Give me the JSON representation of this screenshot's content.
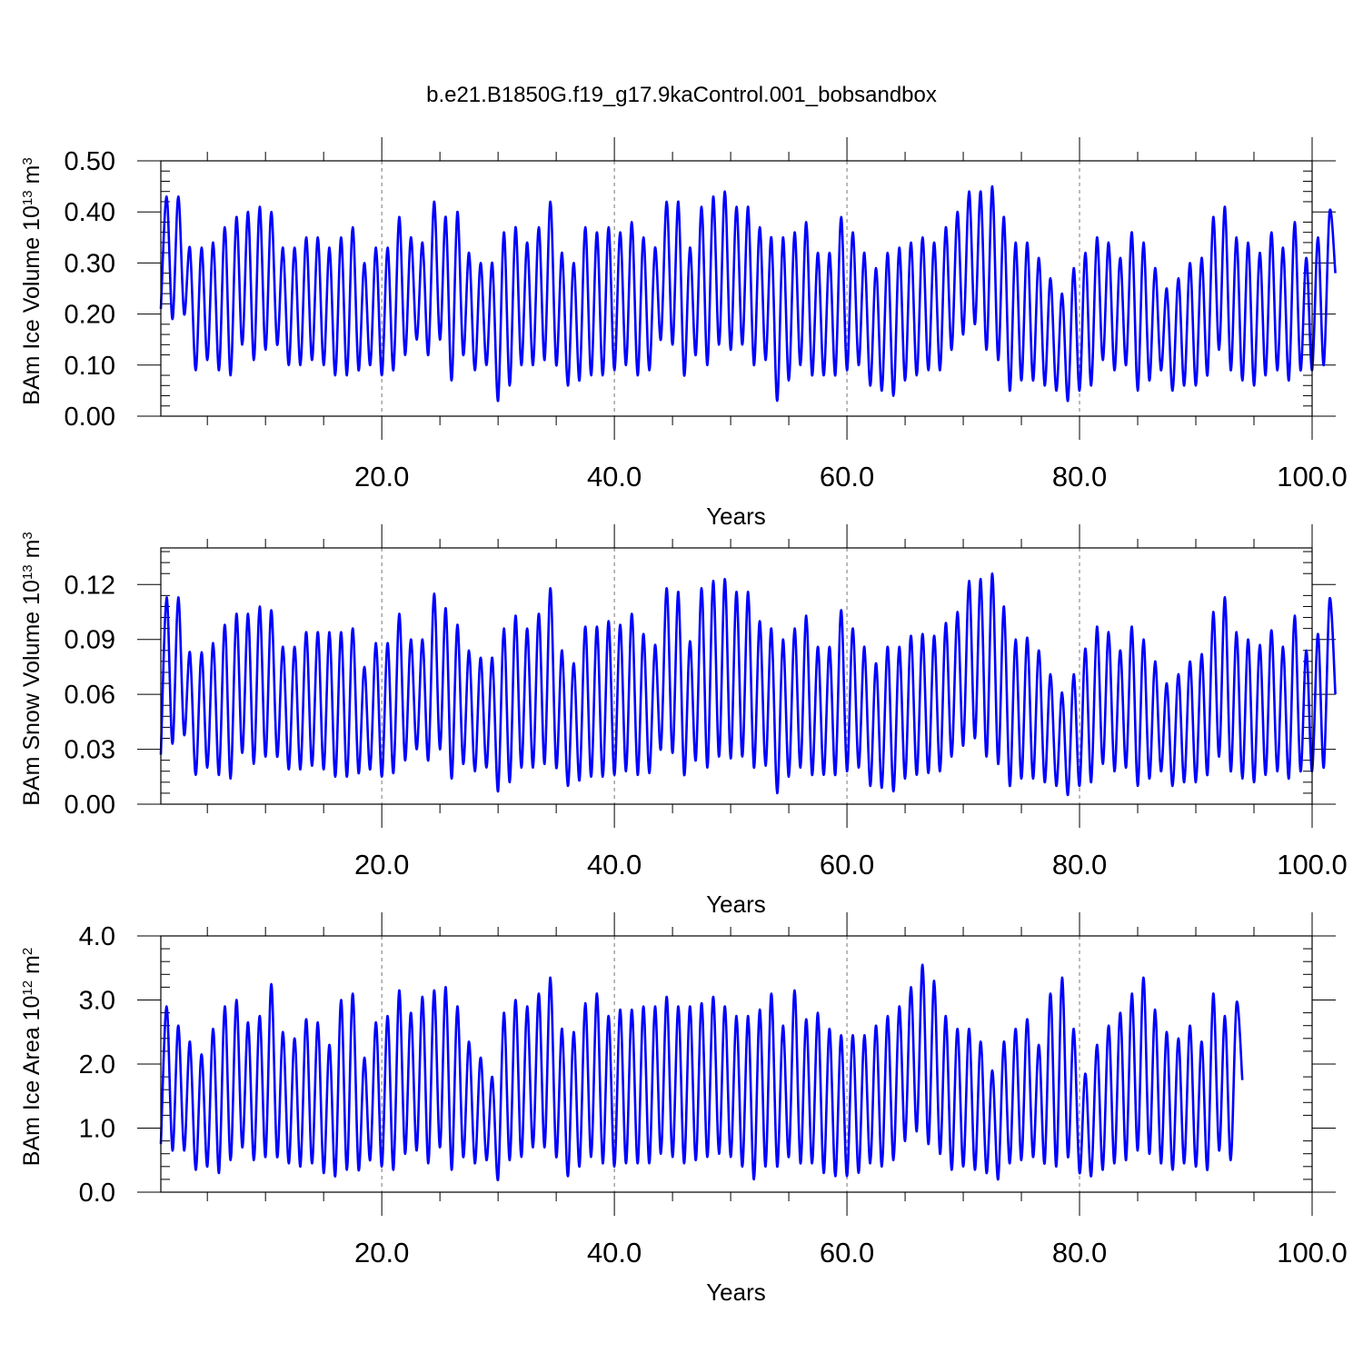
{
  "title": "b.e21.B1850G.f19_g17.9kaControl.001_bobsandbox",
  "colors": {
    "line": "#0000ff",
    "axis": "#000000",
    "grid": "#777777",
    "background": "#ffffff"
  },
  "chart_data": [
    {
      "type": "line",
      "xlabel": "Years",
      "ylabel": {
        "main": "BAm Ice Volume 10",
        "exp1": "13",
        "unit": " m",
        "exp2": "3"
      },
      "xlim": [
        1,
        100
      ],
      "ylim": [
        0,
        0.5
      ],
      "x_ticks": [
        20,
        40,
        60,
        80,
        100
      ],
      "x_tick_labels": [
        "20.0",
        "40.0",
        "60.0",
        "80.0",
        "100.0"
      ],
      "y_ticks": [
        0,
        0.1,
        0.2,
        0.3,
        0.4,
        0.5
      ],
      "y_tick_labels": [
        "0.00",
        "0.10",
        "0.20",
        "0.30",
        "0.40",
        "0.50"
      ],
      "grid": "vertical dashed at x ticks",
      "series": [
        {
          "color": "#0000ff",
          "x_start": 1,
          "x_step": 0.5,
          "values": [
            0.21,
            0.43,
            0.19,
            0.43,
            0.2,
            0.33,
            0.09,
            0.33,
            0.11,
            0.34,
            0.09,
            0.37,
            0.08,
            0.39,
            0.14,
            0.4,
            0.11,
            0.41,
            0.13,
            0.4,
            0.14,
            0.33,
            0.1,
            0.33,
            0.1,
            0.35,
            0.11,
            0.35,
            0.1,
            0.33,
            0.08,
            0.35,
            0.08,
            0.37,
            0.09,
            0.3,
            0.1,
            0.33,
            0.08,
            0.33,
            0.09,
            0.39,
            0.12,
            0.35,
            0.15,
            0.34,
            0.12,
            0.42,
            0.15,
            0.39,
            0.07,
            0.4,
            0.12,
            0.32,
            0.09,
            0.3,
            0.1,
            0.3,
            0.03,
            0.36,
            0.06,
            0.37,
            0.1,
            0.34,
            0.1,
            0.37,
            0.11,
            0.42,
            0.1,
            0.32,
            0.06,
            0.3,
            0.07,
            0.37,
            0.08,
            0.36,
            0.08,
            0.37,
            0.09,
            0.36,
            0.1,
            0.38,
            0.08,
            0.35,
            0.09,
            0.33,
            0.15,
            0.42,
            0.14,
            0.42,
            0.08,
            0.33,
            0.12,
            0.41,
            0.1,
            0.43,
            0.14,
            0.44,
            0.13,
            0.41,
            0.14,
            0.41,
            0.1,
            0.37,
            0.11,
            0.35,
            0.03,
            0.35,
            0.07,
            0.36,
            0.1,
            0.38,
            0.08,
            0.32,
            0.08,
            0.32,
            0.08,
            0.39,
            0.09,
            0.36,
            0.1,
            0.32,
            0.06,
            0.29,
            0.05,
            0.32,
            0.04,
            0.33,
            0.07,
            0.34,
            0.08,
            0.35,
            0.09,
            0.34,
            0.09,
            0.37,
            0.13,
            0.4,
            0.16,
            0.44,
            0.18,
            0.44,
            0.13,
            0.45,
            0.11,
            0.39,
            0.05,
            0.34,
            0.07,
            0.34,
            0.07,
            0.31,
            0.06,
            0.27,
            0.05,
            0.24,
            0.03,
            0.29,
            0.05,
            0.32,
            0.06,
            0.35,
            0.11,
            0.34,
            0.09,
            0.31,
            0.1,
            0.36,
            0.05,
            0.34,
            0.07,
            0.29,
            0.09,
            0.25,
            0.05,
            0.27,
            0.06,
            0.3,
            0.06,
            0.31,
            0.08,
            0.39,
            0.13,
            0.41,
            0.09,
            0.35,
            0.07,
            0.34,
            0.06,
            0.32,
            0.08,
            0.36,
            0.09,
            0.33,
            0.07,
            0.38,
            0.09,
            0.31,
            0.09,
            0.35,
            0.1,
            0.4,
            0.28
          ]
        }
      ]
    },
    {
      "type": "line",
      "xlabel": "Years",
      "ylabel": {
        "main": "BAm Snow Volume 10",
        "exp1": "13",
        "unit": " m",
        "exp2": "3"
      },
      "xlim": [
        1,
        100
      ],
      "ylim": [
        0,
        0.14
      ],
      "x_ticks": [
        20,
        40,
        60,
        80,
        100
      ],
      "x_tick_labels": [
        "20.0",
        "40.0",
        "60.0",
        "80.0",
        "100.0"
      ],
      "y_ticks": [
        0,
        0.03,
        0.06,
        0.09,
        0.12
      ],
      "y_tick_labels": [
        "0.00",
        "0.03",
        "0.06",
        "0.09",
        "0.12"
      ],
      "grid": "vertical dashed at x ticks",
      "series": [
        {
          "color": "#0000ff",
          "x_start": 1,
          "x_step": 0.5,
          "values": [
            0.027,
            0.113,
            0.033,
            0.113,
            0.038,
            0.083,
            0.016,
            0.083,
            0.02,
            0.088,
            0.016,
            0.098,
            0.014,
            0.104,
            0.028,
            0.104,
            0.022,
            0.108,
            0.026,
            0.106,
            0.026,
            0.086,
            0.019,
            0.086,
            0.019,
            0.094,
            0.021,
            0.094,
            0.019,
            0.094,
            0.015,
            0.094,
            0.015,
            0.096,
            0.017,
            0.075,
            0.019,
            0.088,
            0.015,
            0.088,
            0.017,
            0.104,
            0.024,
            0.09,
            0.03,
            0.09,
            0.024,
            0.115,
            0.03,
            0.107,
            0.014,
            0.098,
            0.022,
            0.084,
            0.018,
            0.08,
            0.02,
            0.08,
            0.007,
            0.096,
            0.012,
            0.103,
            0.02,
            0.096,
            0.02,
            0.104,
            0.022,
            0.118,
            0.02,
            0.084,
            0.01,
            0.077,
            0.013,
            0.097,
            0.015,
            0.097,
            0.015,
            0.1,
            0.016,
            0.098,
            0.018,
            0.104,
            0.016,
            0.093,
            0.017,
            0.087,
            0.03,
            0.118,
            0.028,
            0.116,
            0.016,
            0.089,
            0.024,
            0.118,
            0.02,
            0.122,
            0.026,
            0.123,
            0.025,
            0.116,
            0.026,
            0.116,
            0.02,
            0.1,
            0.021,
            0.096,
            0.006,
            0.09,
            0.015,
            0.096,
            0.02,
            0.103,
            0.016,
            0.086,
            0.016,
            0.086,
            0.016,
            0.106,
            0.018,
            0.096,
            0.02,
            0.086,
            0.01,
            0.077,
            0.009,
            0.086,
            0.007,
            0.086,
            0.014,
            0.092,
            0.016,
            0.093,
            0.017,
            0.092,
            0.018,
            0.099,
            0.026,
            0.105,
            0.032,
            0.122,
            0.036,
            0.123,
            0.026,
            0.126,
            0.022,
            0.108,
            0.01,
            0.09,
            0.014,
            0.091,
            0.014,
            0.084,
            0.012,
            0.071,
            0.01,
            0.061,
            0.005,
            0.071,
            0.01,
            0.085,
            0.012,
            0.097,
            0.022,
            0.094,
            0.018,
            0.084,
            0.02,
            0.097,
            0.01,
            0.09,
            0.014,
            0.078,
            0.018,
            0.066,
            0.01,
            0.071,
            0.012,
            0.078,
            0.012,
            0.082,
            0.016,
            0.105,
            0.026,
            0.113,
            0.018,
            0.094,
            0.014,
            0.09,
            0.012,
            0.087,
            0.016,
            0.095,
            0.018,
            0.086,
            0.014,
            0.103,
            0.018,
            0.084,
            0.018,
            0.093,
            0.02,
            0.112,
            0.06
          ]
        }
      ]
    },
    {
      "type": "line",
      "xlabel": "Years",
      "ylabel": {
        "main": "BAm Ice Area 10",
        "exp1": "12",
        "unit": " m",
        "exp2": "2"
      },
      "xlim": [
        1,
        100
      ],
      "ylim": [
        0,
        4
      ],
      "x_ticks": [
        20,
        40,
        60,
        80,
        100
      ],
      "x_tick_labels": [
        "20.0",
        "40.0",
        "60.0",
        "80.0",
        "100.0"
      ],
      "y_ticks": [
        0,
        1,
        2,
        3,
        4
      ],
      "y_tick_labels": [
        "0.0",
        "1.0",
        "2.0",
        "3.0",
        "4.0"
      ],
      "grid": "vertical dashed at x ticks",
      "series": [
        {
          "color": "#0000ff",
          "x_start": 1,
          "x_step": 0.5,
          "values": [
            0.75,
            2.9,
            0.65,
            2.6,
            0.65,
            2.35,
            0.35,
            2.15,
            0.4,
            2.55,
            0.3,
            2.9,
            0.5,
            3.0,
            0.7,
            2.65,
            0.5,
            2.75,
            0.55,
            3.25,
            0.55,
            2.5,
            0.45,
            2.4,
            0.4,
            2.7,
            0.45,
            2.65,
            0.3,
            2.3,
            0.25,
            3.0,
            0.35,
            3.1,
            0.35,
            2.1,
            0.5,
            2.65,
            0.4,
            2.75,
            0.35,
            3.15,
            0.6,
            2.8,
            0.65,
            3.05,
            0.45,
            3.15,
            0.7,
            3.2,
            0.35,
            2.9,
            0.55,
            2.35,
            0.45,
            2.1,
            0.5,
            1.8,
            0.2,
            2.8,
            0.5,
            3.0,
            0.55,
            2.9,
            0.7,
            3.1,
            0.7,
            3.35,
            0.55,
            2.55,
            0.25,
            2.5,
            0.4,
            2.95,
            0.55,
            3.1,
            0.45,
            2.75,
            0.4,
            2.85,
            0.45,
            2.85,
            0.45,
            2.9,
            0.45,
            2.9,
            0.6,
            3.05,
            0.55,
            2.9,
            0.45,
            2.9,
            0.5,
            2.95,
            0.55,
            3.05,
            0.6,
            2.9,
            0.55,
            2.75,
            0.4,
            2.75,
            0.2,
            2.85,
            0.4,
            3.1,
            0.4,
            2.6,
            0.55,
            3.15,
            0.45,
            2.7,
            0.45,
            2.8,
            0.3,
            2.55,
            0.25,
            2.45,
            0.25,
            2.45,
            0.3,
            2.45,
            0.45,
            2.6,
            0.4,
            2.75,
            0.5,
            2.9,
            0.8,
            3.2,
            0.95,
            3.55,
            0.75,
            3.3,
            0.6,
            2.75,
            0.35,
            2.55,
            0.4,
            2.55,
            0.35,
            2.35,
            0.3,
            1.9,
            0.2,
            2.35,
            0.45,
            2.55,
            0.5,
            2.7,
            0.55,
            2.3,
            0.45,
            3.1,
            0.4,
            3.35,
            0.55,
            2.55,
            0.3,
            1.85,
            0.25,
            2.3,
            0.35,
            2.6,
            0.45,
            2.8,
            0.5,
            3.1,
            0.65,
            3.35,
            0.6,
            2.85,
            0.45,
            2.5,
            0.35,
            2.4,
            0.45,
            2.6,
            0.4,
            2.35,
            0.35,
            3.1,
            0.65,
            2.75,
            0.5,
            2.95,
            1.75
          ]
        }
      ]
    }
  ]
}
